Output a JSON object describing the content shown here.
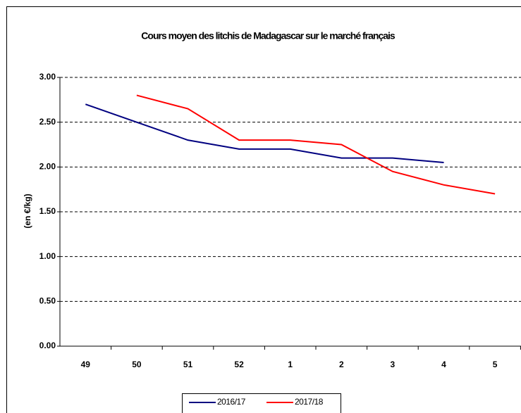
{
  "chart_data": {
    "type": "line",
    "title": "Cours moyen des litchis de Madagascar sur le marché français",
    "y_label": "(en €/kg)",
    "categories": [
      "49",
      "50",
      "51",
      "52",
      "1",
      "2",
      "3",
      "4",
      "5"
    ],
    "series": [
      {
        "name": "2016/17",
        "color": "#000080",
        "values": [
          2.7,
          2.5,
          2.3,
          2.2,
          2.2,
          2.1,
          2.1,
          2.05,
          null
        ]
      },
      {
        "name": "2017/18",
        "color": "#ff0000",
        "values": [
          null,
          2.8,
          2.65,
          2.3,
          2.3,
          2.25,
          1.95,
          1.8,
          1.7
        ]
      }
    ],
    "ylim": [
      0,
      3
    ],
    "yticks": [
      {
        "value": 0,
        "label": "0.00"
      },
      {
        "value": 0.5,
        "label": "0.50"
      },
      {
        "value": 1,
        "label": "1.00"
      },
      {
        "value": 1.5,
        "label": "1.50"
      },
      {
        "value": 2,
        "label": "2.00"
      },
      {
        "value": 2.5,
        "label": "2.50"
      },
      {
        "value": 3,
        "label": "3.00"
      }
    ],
    "grid": true,
    "legend": "bottom"
  }
}
